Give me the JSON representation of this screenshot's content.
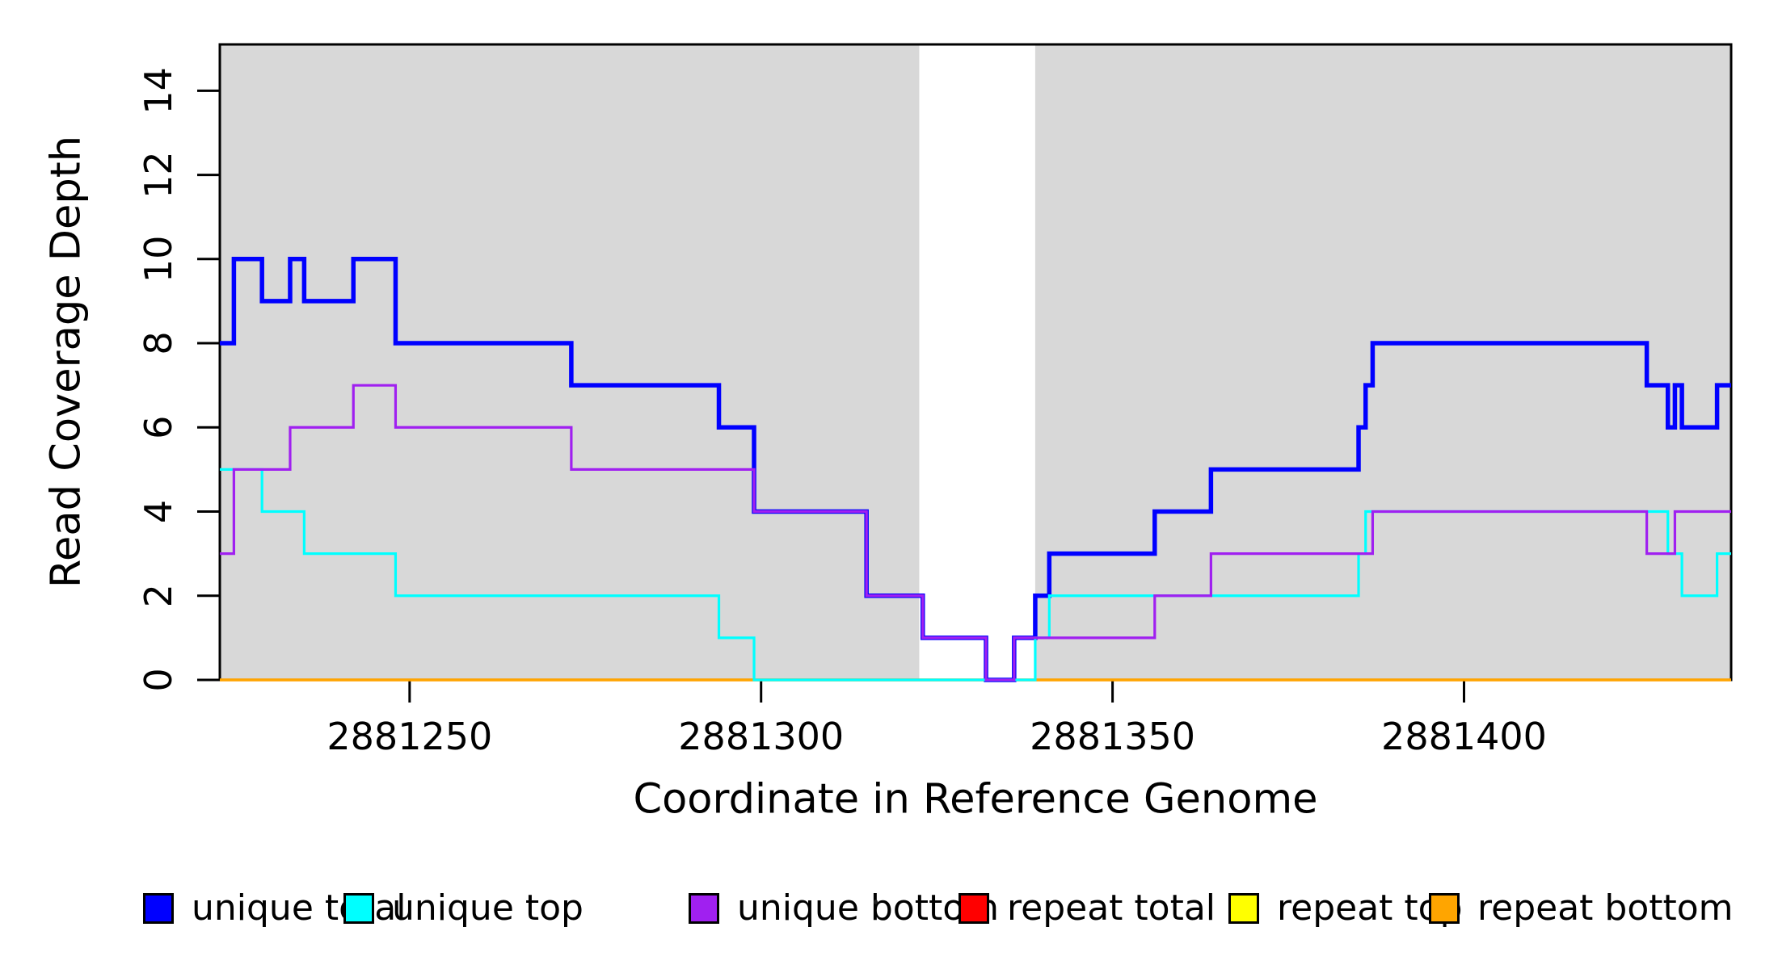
{
  "figure": {
    "title": "",
    "x_axis_title": "Coordinate in Reference Genome",
    "y_axis_title": "Read Coverage Depth"
  },
  "chart_data": {
    "type": "line",
    "subtype": "step-after",
    "title": "",
    "xlabel": "Coordinate in Reference Genome",
    "ylabel": "Read Coverage Depth",
    "xlim": [
      2881223,
      2881438
    ],
    "ylim": [
      0,
      15.1
    ],
    "grid": false,
    "background_color": "#ffffff",
    "x_ticks": [
      2881250,
      2881300,
      2881350,
      2881400
    ],
    "x_tick_labels": [
      "2881250",
      "2881300",
      "2881350",
      "2881400"
    ],
    "y_ticks": [
      0,
      2,
      4,
      6,
      8,
      10,
      12,
      14
    ],
    "y_tick_labels": [
      "0",
      "2",
      "4",
      "6",
      "8",
      "10",
      "12",
      "14"
    ],
    "shaded_regions": [
      {
        "x0": 2881223,
        "x1": 2881322.5,
        "color": "#D8D8D8"
      },
      {
        "x0": 2881339,
        "x1": 2881438,
        "color": "#D8D8D8"
      }
    ],
    "axis_color": "#000000",
    "draw_order": [
      3,
      4,
      5,
      0,
      1,
      2
    ],
    "series": [
      {
        "name": "unique total",
        "color": "#0000FF",
        "linewidth": 5.5,
        "points": [
          [
            2881223,
            8
          ],
          [
            2881225,
            10
          ],
          [
            2881229,
            9
          ],
          [
            2881233,
            10
          ],
          [
            2881235,
            9
          ],
          [
            2881242,
            10
          ],
          [
            2881248,
            8
          ],
          [
            2881273,
            7
          ],
          [
            2881294,
            6
          ],
          [
            2881299,
            4
          ],
          [
            2881315,
            2
          ],
          [
            2881323,
            1
          ],
          [
            2881332,
            0
          ],
          [
            2881336,
            1
          ],
          [
            2881339,
            2
          ],
          [
            2881341,
            3
          ],
          [
            2881356,
            4
          ],
          [
            2881364,
            5
          ],
          [
            2881385,
            6
          ],
          [
            2881386,
            7
          ],
          [
            2881387,
            8
          ],
          [
            2881426,
            7
          ],
          [
            2881429,
            6
          ],
          [
            2881430,
            7
          ],
          [
            2881431,
            6
          ],
          [
            2881436,
            7
          ],
          [
            2881438,
            7
          ]
        ]
      },
      {
        "name": "unique top",
        "color": "#00FFFF",
        "linewidth": 3.2,
        "points": [
          [
            2881223,
            5
          ],
          [
            2881229,
            4
          ],
          [
            2881235,
            3
          ],
          [
            2881248,
            2
          ],
          [
            2881294,
            1
          ],
          [
            2881299,
            0
          ],
          [
            2881339,
            1
          ],
          [
            2881341,
            2
          ],
          [
            2881385,
            3
          ],
          [
            2881386,
            4
          ],
          [
            2881429,
            3
          ],
          [
            2881431,
            2
          ],
          [
            2881436,
            3
          ],
          [
            2881438,
            3
          ]
        ]
      },
      {
        "name": "unique bottom",
        "color": "#A020F0",
        "linewidth": 3.2,
        "points": [
          [
            2881223,
            3
          ],
          [
            2881225,
            5
          ],
          [
            2881233,
            6
          ],
          [
            2881242,
            7
          ],
          [
            2881248,
            6
          ],
          [
            2881273,
            5
          ],
          [
            2881299,
            4
          ],
          [
            2881315,
            2
          ],
          [
            2881323,
            1
          ],
          [
            2881332,
            0
          ],
          [
            2881336,
            1
          ],
          [
            2881356,
            2
          ],
          [
            2881364,
            3
          ],
          [
            2881387,
            4
          ],
          [
            2881426,
            3
          ],
          [
            2881430,
            4
          ],
          [
            2881438,
            4
          ]
        ]
      },
      {
        "name": "repeat total",
        "color": "#FF0000",
        "linewidth": 3.2,
        "points": [
          [
            2881223,
            0
          ],
          [
            2881438,
            0
          ]
        ]
      },
      {
        "name": "repeat top",
        "color": "#FFFF00",
        "linewidth": 3.2,
        "points": [
          [
            2881223,
            0
          ],
          [
            2881438,
            0
          ]
        ]
      },
      {
        "name": "repeat bottom",
        "color": "#FFA500",
        "linewidth": 3.2,
        "points": [
          [
            2881223,
            0
          ],
          [
            2881438,
            0
          ]
        ]
      }
    ],
    "legend": {
      "position": "bottom",
      "items": [
        {
          "label": "unique total",
          "color": "#0000FF"
        },
        {
          "label": "unique top",
          "color": "#00FFFF"
        },
        {
          "label": "unique bottom",
          "color": "#A020F0"
        },
        {
          "label": "repeat total",
          "color": "#FF0000"
        },
        {
          "label": "repeat top",
          "color": "#FFFF00"
        },
        {
          "label": "repeat bottom",
          "color": "#FFA500"
        }
      ]
    }
  }
}
